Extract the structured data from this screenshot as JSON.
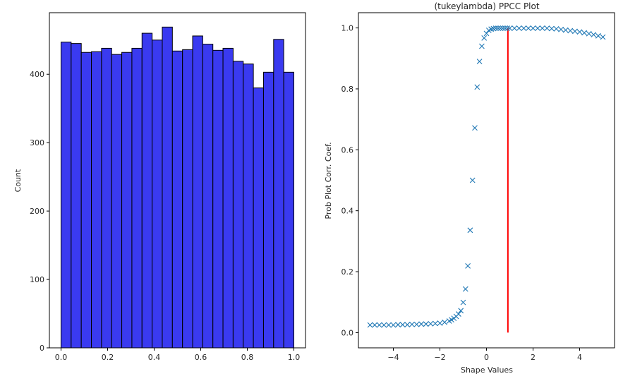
{
  "chart_data": [
    {
      "type": "bar",
      "subtype": "histogram",
      "title": "",
      "xlabel": "",
      "ylabel": "Count",
      "xlim": [
        -0.05,
        1.05
      ],
      "ylim": [
        0,
        490
      ],
      "xticks": [
        0.0,
        0.2,
        0.4,
        0.6,
        0.8,
        1.0
      ],
      "xtick_labels": [
        "0.0",
        "0.2",
        "0.4",
        "0.6",
        "0.8",
        "1.0"
      ],
      "yticks": [
        0,
        100,
        200,
        300,
        400
      ],
      "ytick_labels": [
        "0",
        "100",
        "200",
        "300",
        "400"
      ],
      "bin_range": [
        0,
        1
      ],
      "values": [
        447,
        445,
        432,
        433,
        438,
        429,
        432,
        438,
        460,
        450,
        469,
        434,
        436,
        456,
        444,
        435,
        438,
        419,
        415,
        380,
        403,
        451,
        403
      ],
      "colors": {
        "fill": "#3a3af0",
        "edge": "#000000"
      },
      "grid": false
    },
    {
      "type": "scatter",
      "title": "(tukeylambda) PPCC Plot",
      "xlabel": "Shape Values",
      "ylabel": "Prob Plot Corr. Coef.",
      "xlim": [
        -5.5,
        5.5
      ],
      "ylim": [
        -0.05,
        1.05
      ],
      "xticks": [
        -4,
        -2,
        0,
        2,
        4
      ],
      "xtick_labels": [
        "−4",
        "−2",
        "0",
        "2",
        "4"
      ],
      "yticks": [
        0.0,
        0.2,
        0.4,
        0.6,
        0.8,
        1.0
      ],
      "ytick_labels": [
        "0.0",
        "0.2",
        "0.4",
        "0.6",
        "0.8",
        "1.0"
      ],
      "marker": "x",
      "x": [
        -5.0,
        -4.8,
        -4.6,
        -4.4,
        -4.2,
        -4.0,
        -3.8,
        -3.6,
        -3.4,
        -3.2,
        -3.0,
        -2.8,
        -2.6,
        -2.4,
        -2.2,
        -2.0,
        -1.8,
        -1.6,
        -1.5,
        -1.4,
        -1.3,
        -1.2,
        -1.1,
        -1.0,
        -0.9,
        -0.8,
        -0.7,
        -0.6,
        -0.5,
        -0.4,
        -0.3,
        -0.2,
        -0.1,
        0.0,
        0.1,
        0.2,
        0.3,
        0.4,
        0.5,
        0.6,
        0.7,
        0.8,
        0.9,
        1.0,
        1.2,
        1.4,
        1.6,
        1.8,
        2.0,
        2.2,
        2.4,
        2.6,
        2.8,
        3.0,
        3.2,
        3.4,
        3.6,
        3.8,
        4.0,
        4.2,
        4.4,
        4.6,
        4.8,
        5.0
      ],
      "y": [
        0.025,
        0.025,
        0.025,
        0.025,
        0.025,
        0.025,
        0.026,
        0.026,
        0.026,
        0.027,
        0.027,
        0.028,
        0.028,
        0.029,
        0.03,
        0.031,
        0.034,
        0.038,
        0.042,
        0.047,
        0.053,
        0.061,
        0.072,
        0.099,
        0.143,
        0.219,
        0.336,
        0.5,
        0.672,
        0.806,
        0.89,
        0.94,
        0.967,
        0.982,
        0.992,
        0.996,
        0.998,
        0.999,
        0.999,
        0.999,
        0.999,
        0.999,
        0.999,
        0.999,
        0.999,
        0.999,
        0.999,
        0.999,
        0.999,
        0.999,
        0.999,
        0.999,
        0.998,
        0.997,
        0.995,
        0.993,
        0.991,
        0.989,
        0.987,
        0.984,
        0.981,
        0.978,
        0.974,
        0.97
      ],
      "vline": {
        "x": 0.92,
        "ymin": 0.0,
        "ymax": 1.0,
        "color": "#ff0000"
      },
      "colors": {
        "marker": "#1f77b4"
      },
      "grid": false
    }
  ]
}
